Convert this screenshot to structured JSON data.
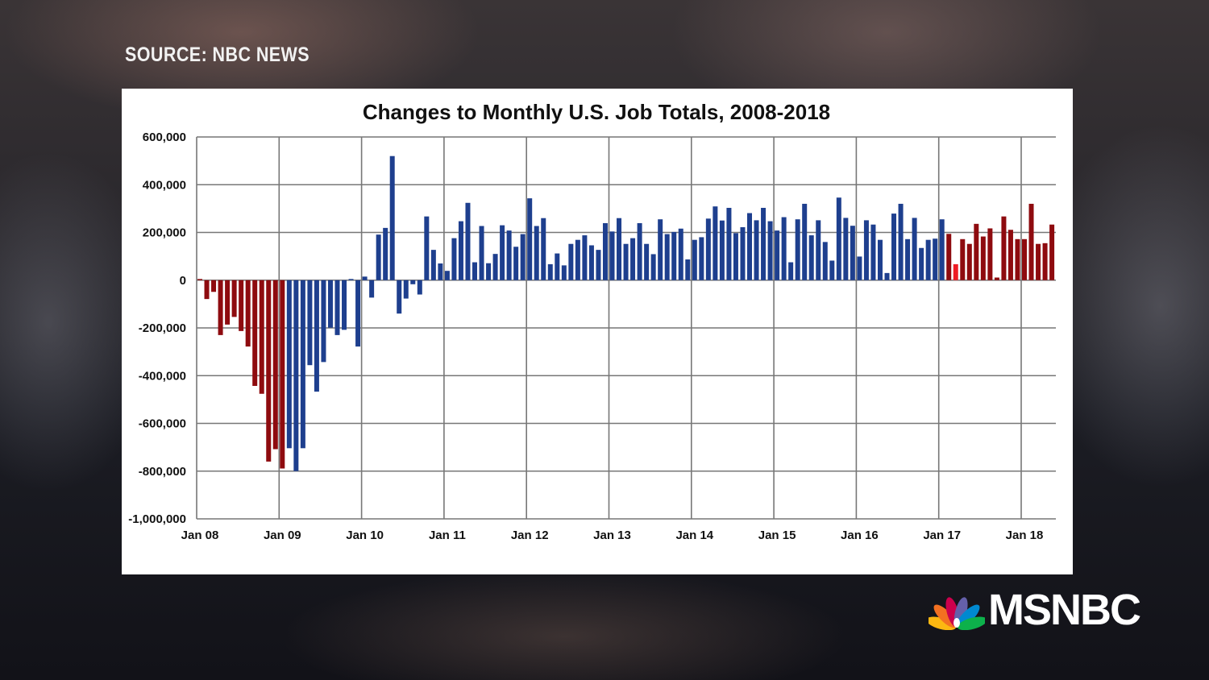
{
  "source_label": "SOURCE: NBC NEWS",
  "network_logo": "MSNBC",
  "chart_data": {
    "type": "bar",
    "title": "Changes to Monthly U.S. Job Totals, 2008-2018",
    "xlabel": "",
    "ylabel": "",
    "ylim": [
      -1000000,
      600000
    ],
    "yticks": [
      600000,
      400000,
      200000,
      0,
      -200000,
      -400000,
      -600000,
      -800000,
      -1000000
    ],
    "ytick_labels": [
      "600,000",
      "400,000",
      "200,000",
      "0",
      "-200,000",
      "-400,000",
      "-600,000",
      "-800,000",
      "-1,000,000"
    ],
    "xtick_labels": [
      "Jan 08",
      "Jan 09",
      "Jan 10",
      "Jan 11",
      "Jan 12",
      "Jan 13",
      "Jan 14",
      "Jan 15",
      "Jan 16",
      "Jan 17",
      "Jan 18"
    ],
    "grid": true,
    "legend": "none",
    "colors": {
      "r": "#8e0b0f",
      "b": "#1e3f8e",
      "h": "#ee1c24"
    },
    "values_thousands": [
      5,
      -79,
      -49,
      -230,
      -186,
      -154,
      -213,
      -278,
      -443,
      -476,
      -760,
      -708,
      -789,
      -704,
      -800,
      -704,
      -356,
      -467,
      -343,
      -199,
      -230,
      -208,
      5,
      -278,
      15,
      -73,
      191,
      219,
      520,
      -140,
      -77,
      -17,
      -60,
      267,
      127,
      70,
      39,
      176,
      247,
      324,
      75,
      227,
      71,
      110,
      230,
      208,
      140,
      193,
      343,
      227,
      260,
      67,
      112,
      62,
      152,
      169,
      188,
      146,
      127,
      239,
      204,
      260,
      152,
      176,
      239,
      152,
      109,
      255,
      193,
      202,
      216,
      87,
      169,
      180,
      258,
      309,
      250,
      303,
      197,
      222,
      281,
      251,
      303,
      247,
      208,
      264,
      75,
      255,
      320,
      188,
      251,
      160,
      82,
      346,
      261,
      228,
      99,
      251,
      233,
      169,
      30,
      279,
      320,
      172,
      261,
      135,
      169,
      174,
      255,
      194,
      67,
      172,
      152,
      236,
      183,
      217,
      11,
      267,
      211,
      172,
      172,
      320,
      152,
      155,
      233
    ],
    "bar_colors": [
      "r",
      "r",
      "r",
      "r",
      "r",
      "r",
      "r",
      "r",
      "r",
      "r",
      "r",
      "r",
      "r",
      "b",
      "b",
      "b",
      "b",
      "b",
      "b",
      "b",
      "b",
      "b",
      "b",
      "b",
      "b",
      "b",
      "b",
      "b",
      "b",
      "b",
      "b",
      "b",
      "b",
      "b",
      "b",
      "b",
      "b",
      "b",
      "b",
      "b",
      "b",
      "b",
      "b",
      "b",
      "b",
      "b",
      "b",
      "b",
      "b",
      "b",
      "b",
      "b",
      "b",
      "b",
      "b",
      "b",
      "b",
      "b",
      "b",
      "b",
      "b",
      "b",
      "b",
      "b",
      "b",
      "b",
      "b",
      "b",
      "b",
      "b",
      "b",
      "b",
      "b",
      "b",
      "b",
      "b",
      "b",
      "b",
      "b",
      "b",
      "b",
      "b",
      "b",
      "b",
      "b",
      "b",
      "b",
      "b",
      "b",
      "b",
      "b",
      "b",
      "b",
      "b",
      "b",
      "b",
      "b",
      "b",
      "b",
      "b",
      "b",
      "b",
      "b",
      "b",
      "b",
      "b",
      "b",
      "b",
      "b",
      "r",
      "h",
      "r",
      "r",
      "r",
      "r",
      "r",
      "r",
      "r",
      "r",
      "r",
      "r",
      "r",
      "r",
      "r",
      "r"
    ]
  }
}
